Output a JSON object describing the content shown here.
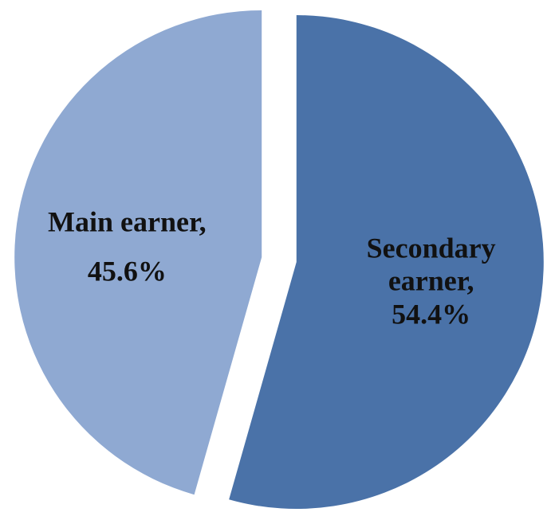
{
  "chart_data": {
    "type": "pie",
    "categories": [
      "Secondary earner,",
      "Main earner,"
    ],
    "values": [
      54.4,
      45.6
    ],
    "value_labels": [
      "54.4%",
      "45.6%"
    ],
    "colors": [
      "#4a72a8",
      "#8fa9d2"
    ]
  }
}
